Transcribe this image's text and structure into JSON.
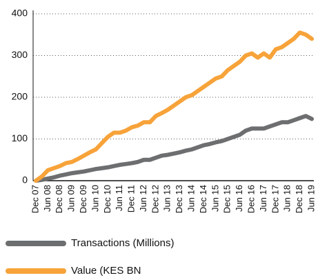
{
  "chart_data": {
    "type": "line",
    "categories": [
      "Dec 07",
      null,
      "Jun 08",
      null,
      "Dec 08",
      null,
      "Jun 09",
      null,
      "Dec 09",
      null,
      "Jun 10",
      null,
      "Dec 10",
      null,
      "Jun 11",
      null,
      "Dec 11",
      null,
      "Jun 12",
      null,
      "Dec 12",
      null,
      "Jun 13",
      null,
      "Dec 13",
      null,
      "Jun 14",
      null,
      "Dec 14",
      null,
      "Jun 15",
      null,
      "Dec 15",
      null,
      "Jun 16",
      null,
      "Dec 16",
      null,
      "Jun 17",
      null,
      "Dec 17",
      null,
      "Jun 18",
      null,
      "Dec 18",
      null,
      "Jun 19"
    ],
    "series": [
      {
        "name": "Transactions (Millions)",
        "color": "#6d6e70",
        "values": [
          0,
          2,
          5,
          8,
          12,
          15,
          18,
          20,
          22,
          25,
          28,
          30,
          32,
          35,
          38,
          40,
          42,
          45,
          50,
          50,
          55,
          60,
          62,
          65,
          68,
          72,
          75,
          80,
          85,
          88,
          92,
          95,
          100,
          105,
          110,
          120,
          125,
          125,
          125,
          130,
          135,
          140,
          140,
          145,
          150,
          155,
          148
        ]
      },
      {
        "name": "Value (KES BN",
        "color": "#f7a33a",
        "values": [
          0,
          10,
          25,
          30,
          35,
          42,
          45,
          52,
          60,
          68,
          75,
          90,
          105,
          115,
          115,
          120,
          128,
          132,
          140,
          140,
          155,
          162,
          170,
          180,
          190,
          200,
          205,
          215,
          225,
          235,
          245,
          250,
          265,
          275,
          285,
          300,
          305,
          295,
          305,
          295,
          315,
          320,
          330,
          340,
          355,
          350,
          340
        ]
      }
    ],
    "ylim": [
      0,
      400
    ],
    "yticks": [
      0,
      100,
      200,
      300,
      400
    ],
    "grid": true
  }
}
